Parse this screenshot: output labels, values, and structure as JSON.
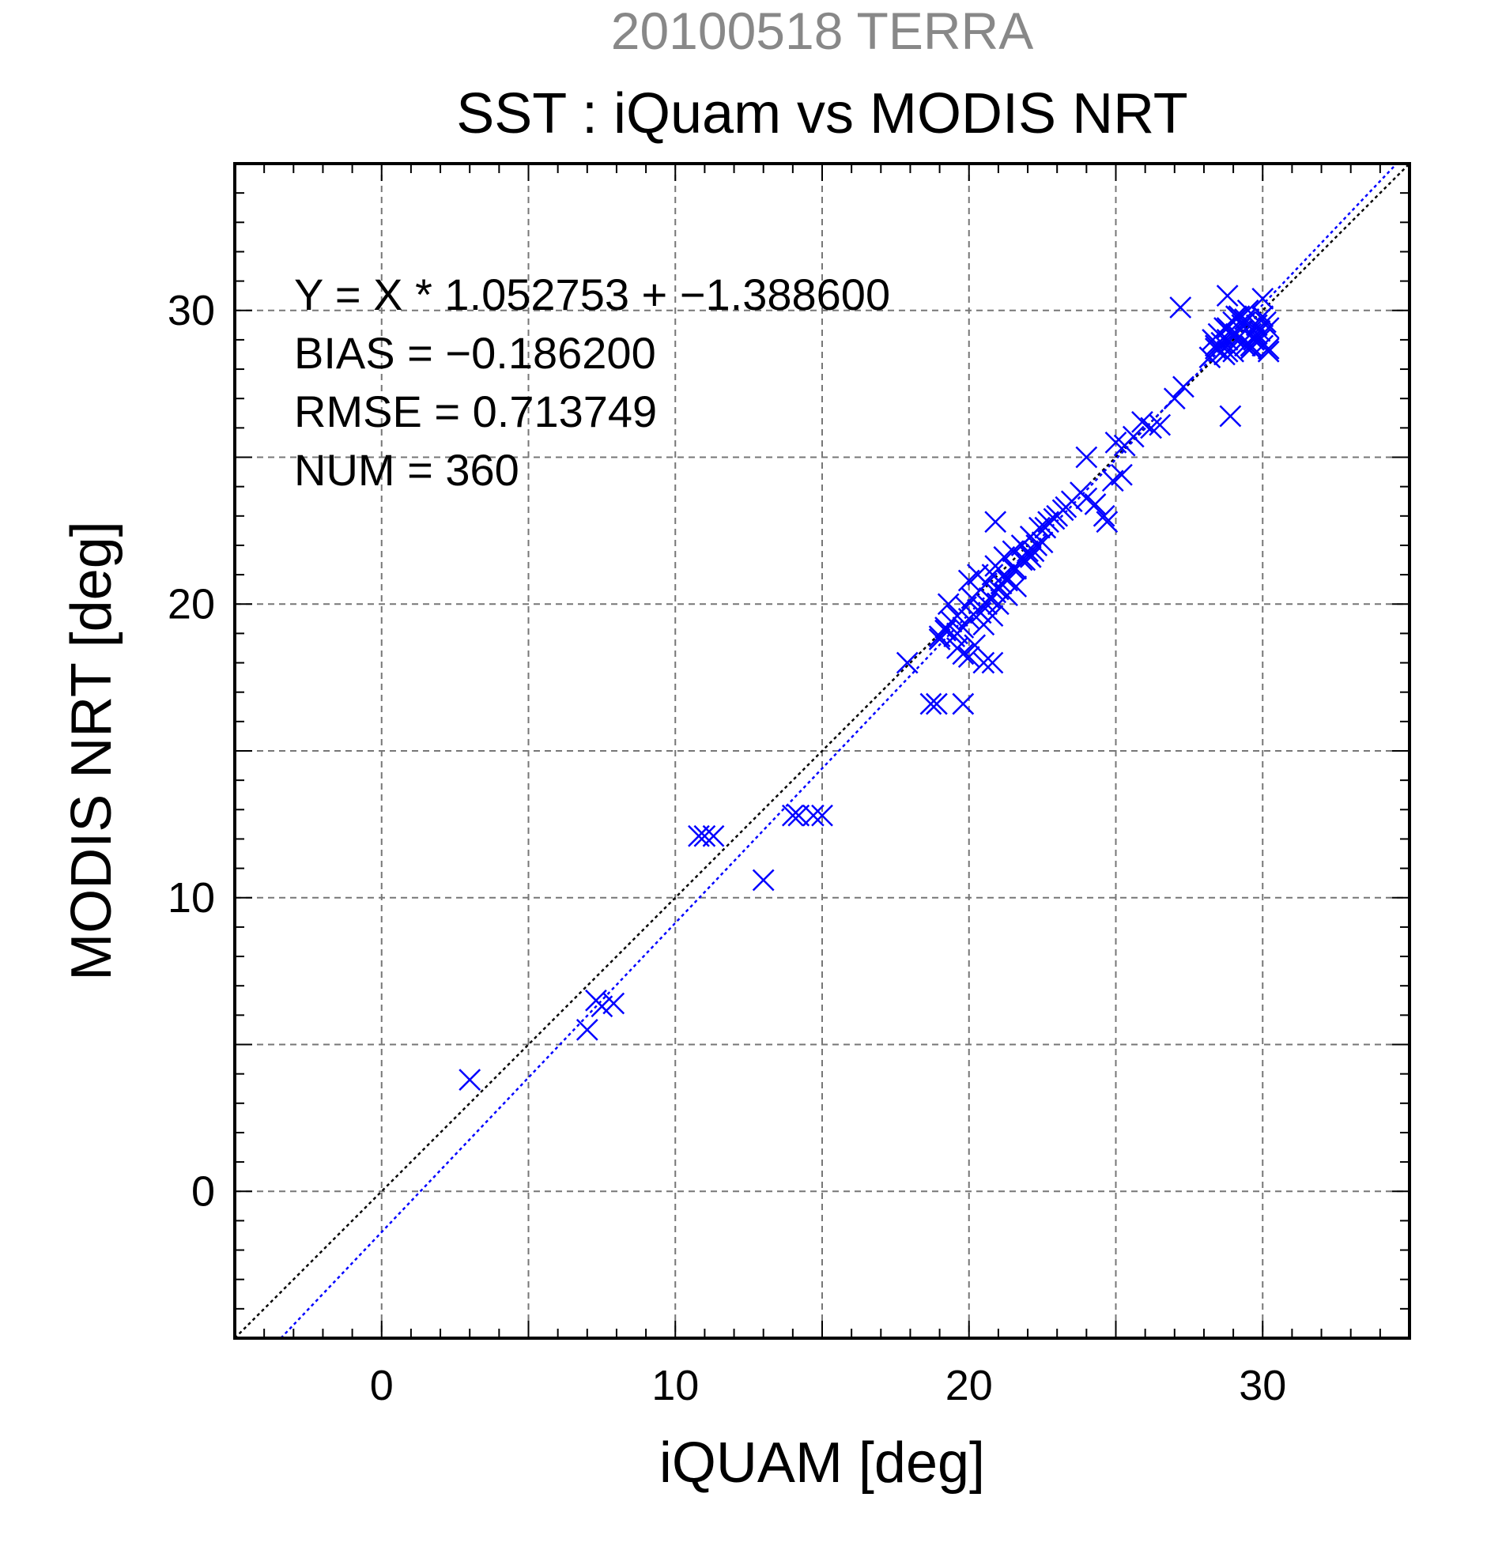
{
  "chart_data": {
    "type": "scatter",
    "supertitle": "20100518 TERRA",
    "title": "SST : iQuam vs MODIS NRT",
    "xlabel": "iQUAM [deg]",
    "ylabel": "MODIS NRT [deg]",
    "xlim": [
      -5,
      35
    ],
    "ylim": [
      -5,
      35
    ],
    "xticks": [
      0,
      10,
      20,
      30
    ],
    "yticks": [
      0,
      10,
      20,
      30
    ],
    "grid": true,
    "stats": [
      "Y = X * 1.052753 + −1.388600",
      "BIAS = −0.186200",
      "RMSE = 0.713749",
      "NUM = 360"
    ],
    "reference_lines": [
      {
        "kind": "1:1",
        "slope": 1.0,
        "intercept": 0.0,
        "color": "#000000"
      },
      {
        "kind": "fit",
        "slope": 1.052753,
        "intercept": -1.3886,
        "color": "#0000ff"
      }
    ],
    "series": [
      {
        "marker": "x",
        "color": "#0000ff",
        "x": [
          3.0,
          7.0,
          7.3,
          7.5,
          7.9,
          10.8,
          11.0,
          11.3,
          13.0,
          14.0,
          14.2,
          14.7,
          15.0,
          17.9,
          18.7,
          18.9,
          19.0,
          19.2,
          19.6,
          19.8,
          19.0,
          19.2,
          19.4,
          19.6,
          19.8,
          20.0,
          20.2,
          20.5,
          20.8,
          19.3,
          19.6,
          19.9,
          20.1,
          20.4,
          20.6,
          20.9,
          21.1,
          19.5,
          19.8,
          20.0,
          20.3,
          20.5,
          20.8,
          21.0,
          21.3,
          20.0,
          20.3,
          20.6,
          20.9,
          21.2,
          21.5,
          21.8,
          22.0,
          22.3,
          20.7,
          21.0,
          21.3,
          21.6,
          21.9,
          22.2,
          22.5,
          20.9,
          21.2,
          21.5,
          21.8,
          22.1,
          22.4,
          22.7,
          23.0,
          23.3,
          22.6,
          22.9,
          23.2,
          23.5,
          23.8,
          24.0,
          24.3,
          24.6,
          24.9,
          25.2,
          25.0,
          25.3,
          25.6,
          25.9,
          26.2,
          26.5,
          27.0,
          27.3,
          27.2,
          24.0,
          24.7,
          20.8,
          21.3,
          21.6,
          22.1,
          28.2,
          28.4,
          28.6,
          28.8,
          29.0,
          29.2,
          29.4,
          29.6,
          29.8,
          30.0,
          30.2,
          28.3,
          28.5,
          28.7,
          28.9,
          29.1,
          29.3,
          29.5,
          29.7,
          29.9,
          30.1,
          28.4,
          28.6,
          28.8,
          29.0,
          29.2,
          29.4,
          29.6,
          29.8,
          30.0,
          28.7,
          29.0,
          29.3,
          29.6,
          29.9,
          30.2,
          28.8,
          29.1,
          29.4,
          29.7,
          30.0,
          28.8,
          28.9,
          30.2
        ],
        "y": [
          3.8,
          5.5,
          6.5,
          6.3,
          6.4,
          12.1,
          12.1,
          12.1,
          10.6,
          12.8,
          12.8,
          12.8,
          12.8,
          18.0,
          16.6,
          16.6,
          18.9,
          19.2,
          19.0,
          16.6,
          18.8,
          19.1,
          19.4,
          18.5,
          18.3,
          18.2,
          18.6,
          18.0,
          18.0,
          20.0,
          19.6,
          19.9,
          20.2,
          19.7,
          20.0,
          20.4,
          20.7,
          18.9,
          19.2,
          19.5,
          19.8,
          19.3,
          19.6,
          20.0,
          20.3,
          20.8,
          21.0,
          20.7,
          21.3,
          21.6,
          21.2,
          21.5,
          21.8,
          22.0,
          20.2,
          20.5,
          20.9,
          21.2,
          21.5,
          21.8,
          22.1,
          22.8,
          21.0,
          21.8,
          22.0,
          22.3,
          22.6,
          22.8,
          23.0,
          23.3,
          22.6,
          22.9,
          23.2,
          23.5,
          23.8,
          23.6,
          23.4,
          23.0,
          24.2,
          24.4,
          25.5,
          25.4,
          25.7,
          26.2,
          26.0,
          26.1,
          27.0,
          27.4,
          30.1,
          25.0,
          22.8,
          21.0,
          20.8,
          20.6,
          21.6,
          28.4,
          28.8,
          28.6,
          29.0,
          29.6,
          29.8,
          28.8,
          29.2,
          29.5,
          28.8,
          28.6,
          29.0,
          29.2,
          28.5,
          29.3,
          29.8,
          29.5,
          30.0,
          29.0,
          29.3,
          29.6,
          28.7,
          28.9,
          29.4,
          28.6,
          29.1,
          29.6,
          28.8,
          29.2,
          29.8,
          29.4,
          29.1,
          28.9,
          28.7,
          29.0,
          29.4,
          28.6,
          29.2,
          29.7,
          29.0,
          30.4,
          30.5,
          26.4,
          28.7
        ]
      }
    ]
  }
}
